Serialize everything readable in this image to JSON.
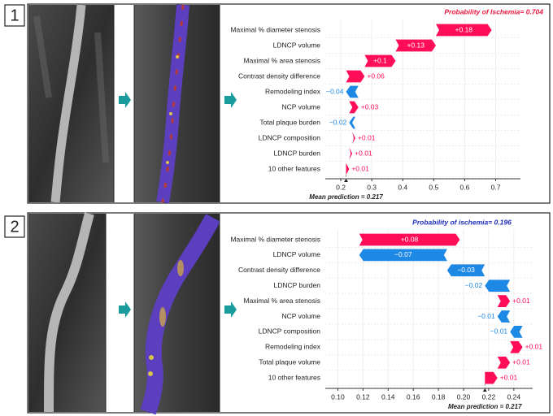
{
  "panels": [
    "1",
    "2"
  ],
  "chart_data": [
    {
      "type": "waterfall",
      "title": "Probability of Ischemia= 0.704",
      "title_color": "#e8173f",
      "annotation": "Mean prediction = 0.217",
      "base_value": 0.217,
      "categories": [
        "Maximal % diameter stenosis",
        "LDNCP volume",
        "Maximal % area stenosis",
        "Contrast density difference",
        "Remodeling index",
        "NCP volume",
        "Total plaque burden",
        "LDNCP composition",
        "LDNCP burden",
        "10 other features"
      ],
      "values": [
        0.18,
        0.13,
        0.1,
        0.06,
        -0.04,
        0.03,
        -0.02,
        0.01,
        0.01,
        0.01
      ],
      "value_labels": [
        "+0.18",
        "+0.13",
        "+0.1",
        "+0.06",
        "−0.04",
        "+0.03",
        "−0.02",
        "+0.01",
        "+0.01",
        "+0.01"
      ],
      "positive_color": "#ff0d57",
      "negative_color": "#1e88e5",
      "xlim": [
        0.15,
        0.78
      ],
      "xticks": [
        0.2,
        0.3,
        0.4,
        0.5,
        0.6,
        0.7
      ],
      "grid": true
    },
    {
      "type": "waterfall",
      "title": "Probability of ischemia= 0.196",
      "title_color": "#1a2bb8",
      "annotation": "Mean prediction = 0.217",
      "base_value": 0.217,
      "categories": [
        "Maximal % diameter stenosis",
        "LDNCP volume",
        "Contrast density difference",
        "LDNCP burden",
        "Maximal % area stenosis",
        "NCP volume",
        "LDNCP composition",
        "Remodeling index",
        "Total plaque volume",
        "10 other features"
      ],
      "values": [
        0.08,
        -0.07,
        -0.03,
        -0.02,
        0.01,
        -0.01,
        -0.01,
        0.01,
        0.01,
        0.01
      ],
      "value_labels": [
        "+0.08",
        "−0.07",
        "−0.03",
        "−0.02",
        "+0.01",
        "−0.01",
        "−0.01",
        "+0.01",
        "+0.01",
        "+0.01"
      ],
      "positive_color": "#ff0d57",
      "negative_color": "#1e88e5",
      "xlim": [
        0.09,
        0.255
      ],
      "xticks": [
        {
          "value": 0.1,
          "label": "0.10"
        },
        0.12,
        0.14,
        0.16,
        0.18,
        {
          "value": 0.2,
          "label": "0.20"
        },
        0.22,
        0.24
      ],
      "grid": true
    }
  ]
}
